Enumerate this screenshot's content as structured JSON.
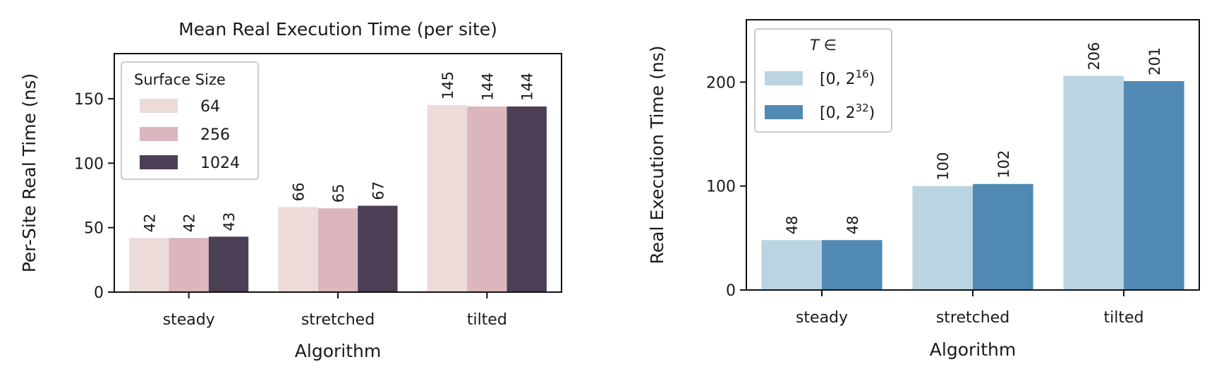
{
  "chart_data": [
    {
      "type": "bar",
      "title": "Mean Real Execution Time (per site)",
      "xlabel": "Algorithm",
      "ylabel": "Per-Site Real Time (ns)",
      "categories": [
        "steady",
        "stretched",
        "tilted"
      ],
      "ylim": [
        0,
        185
      ],
      "yticks": [
        0,
        50,
        100,
        150
      ],
      "legend": {
        "title": "Surface Size",
        "position": "top-left"
      },
      "colors": [
        "#ecdbd9",
        "#dbb6bd",
        "#4b3f55"
      ],
      "series": [
        {
          "name": "64",
          "values": [
            42,
            66,
            145
          ],
          "labels": [
            "42",
            "66",
            "145"
          ]
        },
        {
          "name": "256",
          "values": [
            42,
            65,
            144
          ],
          "labels": [
            "42",
            "65",
            "144"
          ]
        },
        {
          "name": "1024",
          "values": [
            43,
            67,
            144
          ],
          "labels": [
            "43",
            "67",
            "144"
          ]
        }
      ],
      "grid": false
    },
    {
      "type": "bar",
      "title": "",
      "xlabel": "Algorithm",
      "ylabel": "Real Execution Time (ns)",
      "categories": [
        "steady",
        "stretched",
        "tilted"
      ],
      "ylim": [
        0,
        260
      ],
      "yticks": [
        0,
        100,
        200
      ],
      "legend": {
        "title": "T ∈",
        "position": "top-left"
      },
      "colors": [
        "#bad4e1",
        "#5089b3"
      ],
      "series": [
        {
          "name": "[0, 2^16)",
          "name_base": "[0, 2",
          "name_sup": "16",
          "name_end": ")",
          "values": [
            48,
            100,
            206
          ],
          "labels": [
            "48",
            "100",
            "206"
          ]
        },
        {
          "name": "[0, 2^32)",
          "name_base": "[0, 2",
          "name_sup": "32",
          "name_end": ")",
          "values": [
            48,
            102,
            201
          ],
          "labels": [
            "48",
            "102",
            "201"
          ]
        }
      ],
      "grid": false
    }
  ]
}
